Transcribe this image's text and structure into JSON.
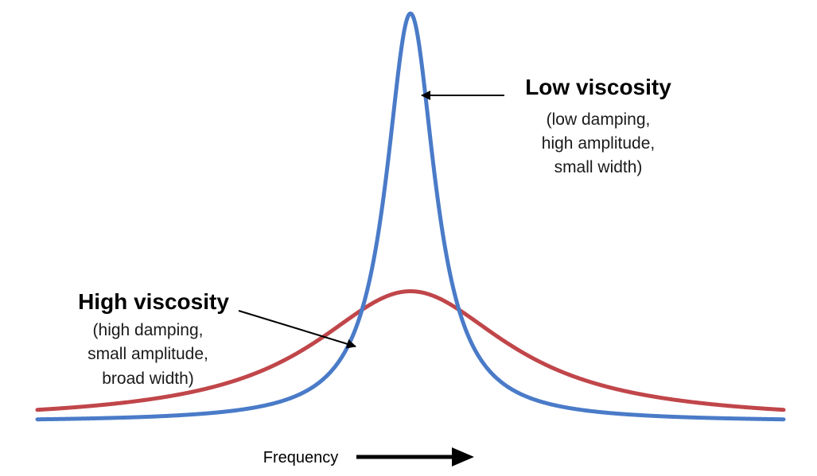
{
  "figure": {
    "low": {
      "title": "Low viscosity",
      "lines": [
        "(low damping,",
        "high amplitude,",
        "small width)"
      ]
    },
    "high": {
      "title": "High viscosity",
      "lines": [
        "(high damping,",
        "small amplitude,",
        "broad width)"
      ]
    },
    "x_axis_label": "Frequency"
  },
  "colors": {
    "low_curve": "#4a7bc8",
    "high_curve": "#c0464a",
    "arrow": "#000000"
  },
  "chart_data": {
    "type": "line",
    "x_axis_label": "Frequency",
    "series": [
      {
        "name": "Low viscosity",
        "center": 0,
        "amplitude": 1.0,
        "half_width": 0.04
      },
      {
        "name": "High viscosity",
        "center": 0,
        "amplitude": 0.32,
        "half_width": 0.16
      }
    ]
  }
}
